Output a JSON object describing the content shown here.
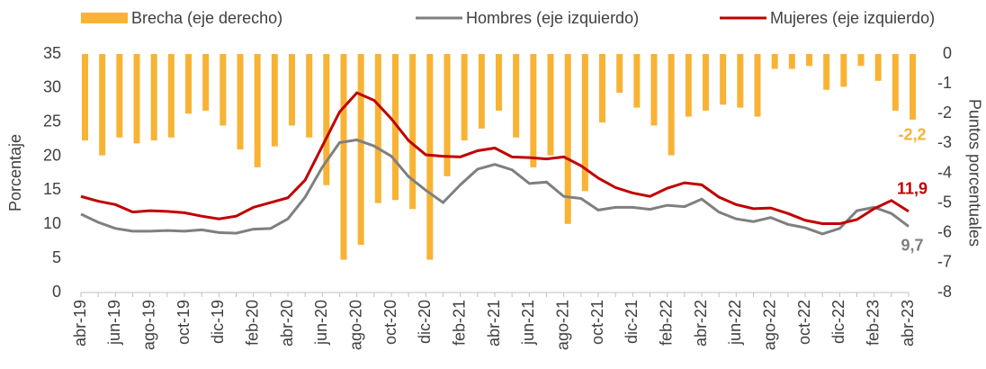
{
  "chart_data": {
    "type": "bar-line",
    "ylabel": "Porcentaje",
    "y2label": "Puntos porcentuales",
    "categories": [
      "abr-19",
      null,
      "jun-19",
      null,
      "ago-19",
      null,
      "oct-19",
      null,
      "dic-19",
      null,
      "feb-20",
      null,
      "abr-20",
      null,
      "jun-20",
      null,
      "ago-20",
      null,
      "oct-20",
      null,
      "dic-20",
      null,
      "feb-21",
      null,
      "abr-21",
      null,
      "jun-21",
      null,
      "ago-21",
      null,
      "oct-21",
      null,
      "dic-21",
      null,
      "feb-22",
      null,
      "abr-22",
      null,
      "jun-22",
      null,
      "ago-22",
      null,
      "oct-22",
      null,
      "dic-22",
      null,
      "feb-23",
      null,
      "abr-23"
    ],
    "series": [
      {
        "name": "Brecha (eje derecho)",
        "color": "#F8B335",
        "type": "bar",
        "axis": "y2",
        "values": [
          -2.9,
          -3.4,
          -2.8,
          -3.0,
          -2.9,
          -2.8,
          -2.0,
          -1.9,
          -2.4,
          -3.2,
          -3.8,
          -3.1,
          -2.4,
          -2.8,
          -4.4,
          -6.9,
          -6.4,
          -5.0,
          -4.9,
          -5.2,
          -6.9,
          -4.1,
          -2.9,
          -2.5,
          -1.9,
          -2.8,
          -3.8,
          -3.4,
          -5.7,
          -4.6,
          -2.3,
          -1.3,
          -1.8,
          -2.4,
          -3.4,
          -2.1,
          -1.9,
          -1.7,
          -1.8,
          -2.1,
          -0.5,
          -0.5,
          -0.4,
          -1.2,
          -1.1,
          -0.4,
          -0.9,
          -1.9,
          -2.2
        ],
        "value_labels": [
          null,
          null,
          null,
          null,
          null,
          null,
          null,
          null,
          null,
          null,
          null,
          null,
          null,
          null,
          null,
          null,
          null,
          null,
          null,
          null,
          null,
          null,
          null,
          null,
          null,
          null,
          null,
          null,
          null,
          null,
          null,
          null,
          null,
          null,
          null,
          null,
          null,
          null,
          null,
          null,
          null,
          null,
          null,
          null,
          null,
          null,
          null,
          null,
          "-2,2"
        ]
      },
      {
        "name": "Hombres (eje izquierdo)",
        "color": "#7F7F7F",
        "type": "line",
        "values": [
          11.5,
          10.3,
          9.4,
          9.0,
          9.0,
          9.1,
          9.0,
          9.2,
          8.8,
          8.7,
          9.3,
          9.4,
          10.8,
          14.0,
          18.4,
          22.0,
          22.4,
          21.5,
          20.0,
          17.0,
          15.0,
          13.2,
          15.8,
          18.1,
          18.8,
          18.0,
          16.0,
          16.2,
          14.1,
          13.8,
          12.1,
          12.5,
          12.5,
          12.2,
          12.8,
          12.6,
          13.7,
          11.8,
          10.8,
          10.4,
          11.0,
          10.0,
          9.5,
          8.6,
          9.4,
          12.0,
          12.5,
          11.6,
          9.7
        ],
        "value_labels": [
          null,
          null,
          null,
          null,
          null,
          null,
          null,
          null,
          null,
          null,
          null,
          null,
          null,
          null,
          null,
          null,
          null,
          null,
          null,
          null,
          null,
          null,
          null,
          null,
          null,
          null,
          null,
          null,
          null,
          null,
          null,
          null,
          null,
          null,
          null,
          null,
          null,
          null,
          null,
          null,
          null,
          null,
          null,
          null,
          null,
          null,
          null,
          null,
          "9,7"
        ]
      },
      {
        "name": "Mujeres (eje izquierdo)",
        "color": "#C00000",
        "type": "line",
        "values": [
          14.1,
          13.4,
          12.9,
          11.8,
          12.0,
          11.9,
          11.7,
          11.2,
          10.8,
          11.2,
          12.5,
          13.2,
          13.9,
          16.5,
          21.5,
          26.5,
          29.3,
          28.2,
          25.5,
          22.3,
          20.2,
          20.0,
          19.9,
          20.8,
          21.2,
          19.9,
          19.8,
          19.6,
          19.9,
          18.6,
          16.8,
          15.4,
          14.6,
          14.1,
          15.3,
          16.1,
          15.8,
          14.0,
          12.9,
          12.3,
          12.4,
          11.6,
          10.6,
          10.1,
          10.1,
          10.7,
          12.3,
          13.5,
          11.9
        ],
        "value_labels": [
          null,
          null,
          null,
          null,
          null,
          null,
          null,
          null,
          null,
          null,
          null,
          null,
          null,
          null,
          null,
          null,
          null,
          null,
          null,
          null,
          null,
          null,
          null,
          null,
          null,
          null,
          null,
          null,
          null,
          null,
          null,
          null,
          null,
          null,
          null,
          null,
          null,
          null,
          null,
          null,
          null,
          null,
          null,
          null,
          null,
          null,
          null,
          null,
          "11,9"
        ]
      }
    ],
    "ylim": [
      0,
      35
    ],
    "yticks": [
      0,
      5,
      10,
      15,
      20,
      25,
      30,
      35
    ],
    "y2lim": [
      -8,
      0
    ],
    "y2ticks": [
      -8,
      -7,
      -6,
      -5,
      -4,
      -3,
      -2,
      -1,
      0
    ],
    "legend": "top"
  }
}
